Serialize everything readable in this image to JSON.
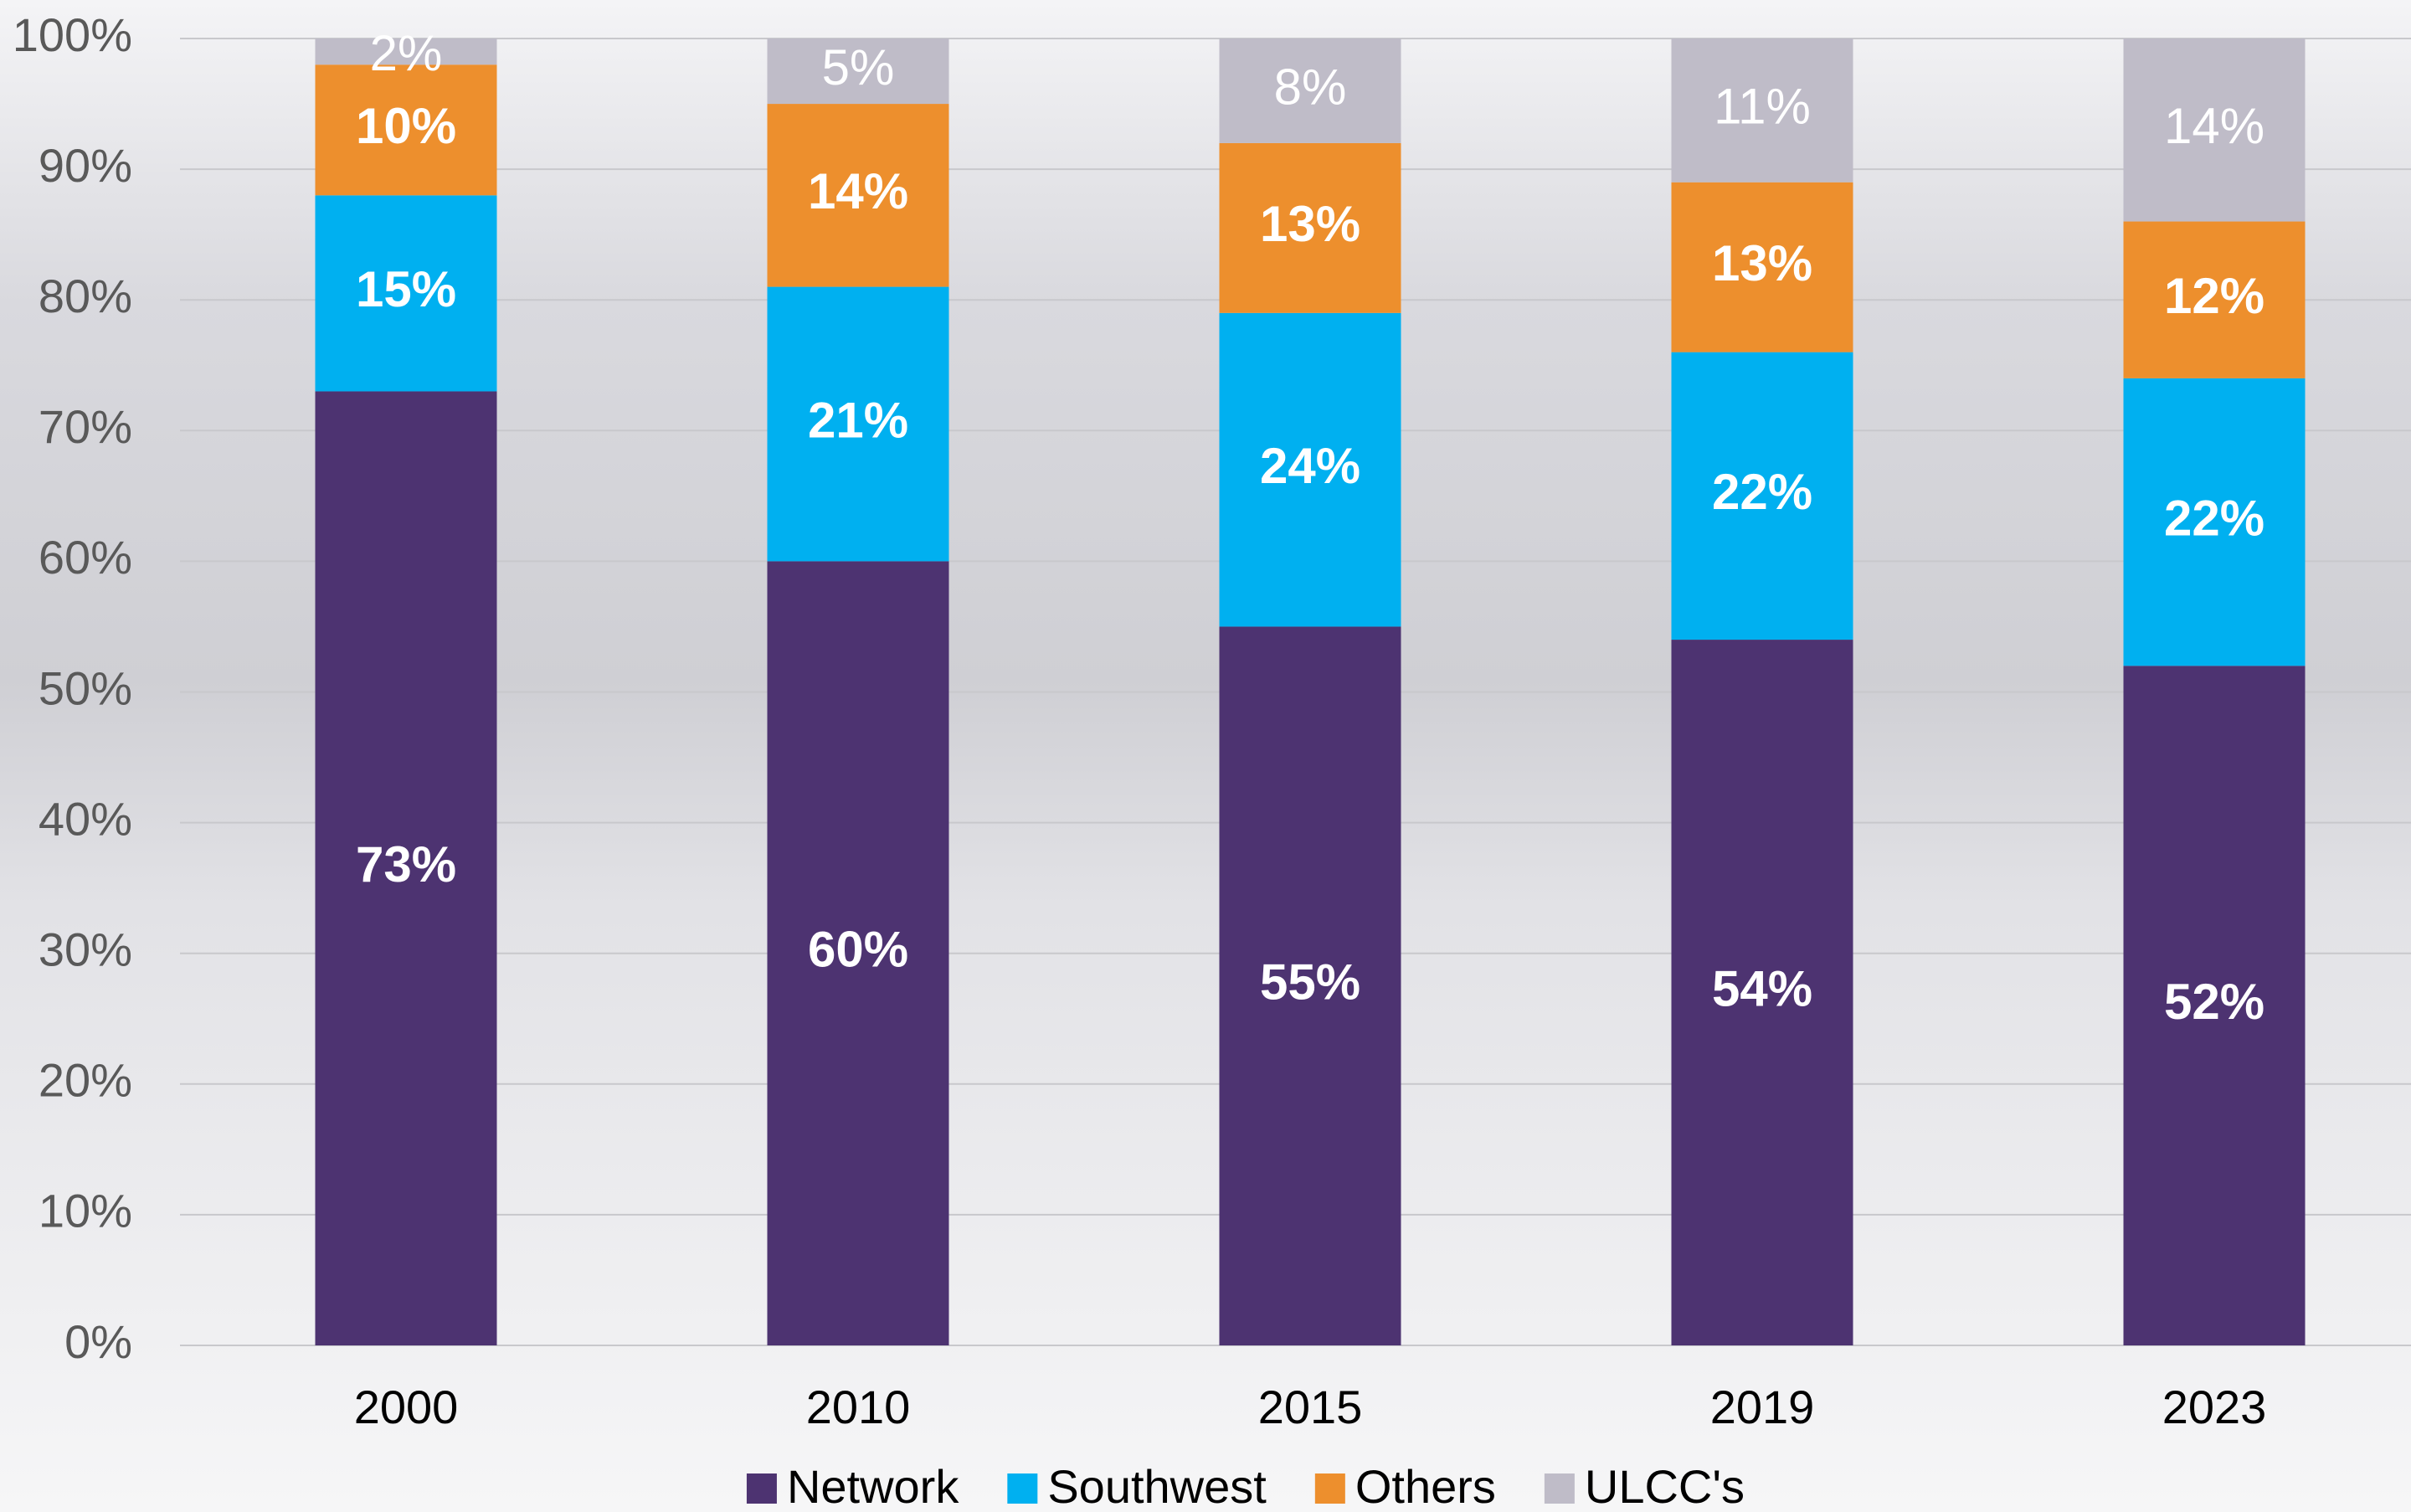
{
  "chart_data": {
    "type": "stacked-bar",
    "categories": [
      "2000",
      "2010",
      "2015",
      "2019",
      "2023"
    ],
    "series": [
      {
        "name": "Network",
        "color": "#4d3371",
        "values": [
          73,
          60,
          55,
          54,
          52
        ],
        "value_labels": [
          "73%",
          "60%",
          "55%",
          "54%",
          "52%"
        ]
      },
      {
        "name": "Southwest",
        "color": "#00b0f0",
        "values": [
          15,
          21,
          24,
          22,
          22
        ],
        "value_labels": [
          "15%",
          "21%",
          "24%",
          "22%",
          "22%"
        ]
      },
      {
        "name": "Others",
        "color": "#ed8f2d",
        "values": [
          10,
          14,
          13,
          13,
          12
        ],
        "value_labels": [
          "10%",
          "14%",
          "13%",
          "13%",
          "12%"
        ]
      },
      {
        "name": "ULCC's",
        "color": "#bfbcc8",
        "values": [
          2,
          5,
          8,
          11,
          14
        ],
        "value_labels": [
          "2%",
          "5%",
          "8%",
          "11%",
          "14%"
        ]
      }
    ],
    "ylim": [
      0,
      100
    ],
    "yticks": [
      {
        "value": 0,
        "label": "0%"
      },
      {
        "value": 10,
        "label": "10%"
      },
      {
        "value": 20,
        "label": "20%"
      },
      {
        "value": 30,
        "label": "30%"
      },
      {
        "value": 40,
        "label": "40%"
      },
      {
        "value": 50,
        "label": "50%"
      },
      {
        "value": 60,
        "label": "60%"
      },
      {
        "value": 70,
        "label": "70%"
      },
      {
        "value": 80,
        "label": "80%"
      },
      {
        "value": 90,
        "label": "90%"
      },
      {
        "value": 100,
        "label": "100%"
      }
    ],
    "grid": true,
    "legend": "bottom"
  }
}
